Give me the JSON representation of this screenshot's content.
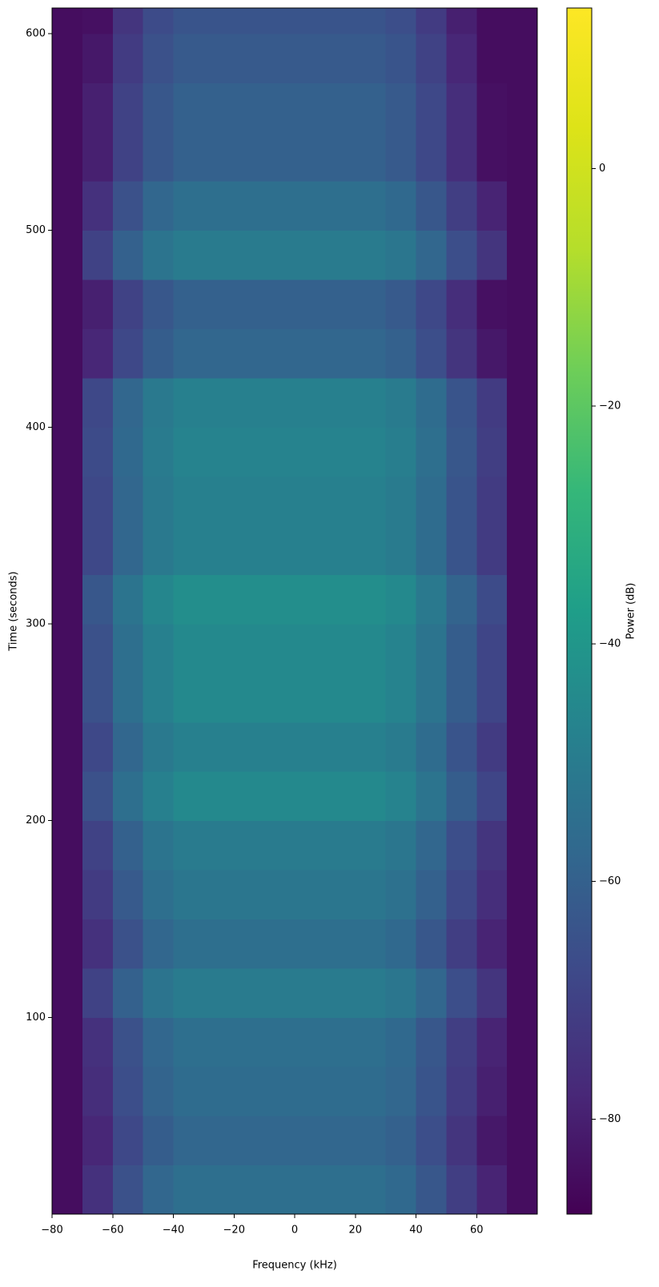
{
  "chart_data": {
    "type": "heatmap",
    "xlabel": "Frequency (kHz)",
    "ylabel": "Time (seconds)",
    "xlim": [
      -80,
      80
    ],
    "ylim": [
      0,
      613
    ],
    "xticks": [
      {
        "value": -80,
        "label": "−80"
      },
      {
        "value": -60,
        "label": "−60"
      },
      {
        "value": -40,
        "label": "−40"
      },
      {
        "value": -20,
        "label": "−20"
      },
      0,
      20,
      40,
      60
    ],
    "yticks": [
      100,
      200,
      300,
      400,
      500,
      600
    ],
    "colormap": "viridis",
    "xbins": [
      -80,
      -70,
      -60,
      -50,
      -40,
      -30,
      -20,
      -10,
      0,
      10,
      20,
      30,
      40,
      50,
      60,
      70,
      80
    ],
    "ybins": [
      0,
      25,
      50,
      75,
      100,
      125,
      150,
      175,
      200,
      225,
      250,
      275,
      300,
      325,
      350,
      375,
      400,
      425,
      450,
      475,
      500,
      525,
      550,
      575,
      600,
      613
    ],
    "values": [
      [
        -85,
        -75,
        -65,
        -58,
        -55,
        -55,
        -55,
        -55,
        -55,
        -55,
        -55,
        -57,
        -63,
        -71,
        -79,
        -85
      ],
      [
        -85,
        -78,
        -68,
        -61,
        -58,
        -58,
        -58,
        -58,
        -58,
        -58,
        -58,
        -60,
        -66,
        -74,
        -82,
        -85
      ],
      [
        -85,
        -76,
        -66,
        -59,
        -56,
        -56,
        -56,
        -56,
        -56,
        -56,
        -56,
        -58,
        -64,
        -72,
        -80,
        -85
      ],
      [
        -85,
        -75,
        -65,
        -58,
        -55,
        -55,
        -55,
        -55,
        -55,
        -55,
        -55,
        -57,
        -63,
        -71,
        -79,
        -85
      ],
      [
        -85,
        -70,
        -60,
        -53,
        -50,
        -50,
        -50,
        -50,
        -50,
        -50,
        -50,
        -52,
        -58,
        -66,
        -74,
        -85
      ],
      [
        -85,
        -75,
        -65,
        -58,
        -55,
        -55,
        -55,
        -55,
        -55,
        -55,
        -55,
        -57,
        -63,
        -71,
        -79,
        -85
      ],
      [
        -85,
        -72,
        -62,
        -55,
        -52,
        -52,
        -52,
        -52,
        -52,
        -52,
        -52,
        -54,
        -60,
        -68,
        -76,
        -85
      ],
      [
        -85,
        -70,
        -60,
        -53,
        -50,
        -50,
        -50,
        -50,
        -50,
        -50,
        -50,
        -52,
        -58,
        -66,
        -74,
        -85
      ],
      [
        -85,
        -65,
        -55,
        -48,
        -45,
        -45,
        -45,
        -45,
        -45,
        -45,
        -45,
        -47,
        -53,
        -61,
        -69,
        -85
      ],
      [
        -85,
        -68,
        -58,
        -51,
        -48,
        -48,
        -48,
        -48,
        -48,
        -48,
        -48,
        -50,
        -56,
        -64,
        -72,
        -85
      ],
      [
        -85,
        -65,
        -55,
        -48,
        -45,
        -45,
        -45,
        -45,
        -45,
        -45,
        -45,
        -47,
        -53,
        -61,
        -69,
        -85
      ],
      [
        -85,
        -65,
        -55,
        -48,
        -45,
        -45,
        -45,
        -45,
        -45,
        -45,
        -45,
        -47,
        -53,
        -61,
        -69,
        -85
      ],
      [
        -85,
        -63,
        -53,
        -46,
        -43,
        -43,
        -43,
        -43,
        -43,
        -43,
        -43,
        -45,
        -51,
        -59,
        -67,
        -85
      ],
      [
        -85,
        -68,
        -58,
        -51,
        -48,
        -48,
        -48,
        -48,
        -48,
        -48,
        -48,
        -50,
        -56,
        -64,
        -72,
        -85
      ],
      [
        -85,
        -68,
        -58,
        -51,
        -48,
        -48,
        -48,
        -48,
        -48,
        -48,
        -48,
        -50,
        -56,
        -64,
        -72,
        -85
      ],
      [
        -85,
        -67,
        -57,
        -50,
        -47,
        -47,
        -47,
        -47,
        -47,
        -47,
        -47,
        -49,
        -55,
        -63,
        -71,
        -85
      ],
      [
        -85,
        -68,
        -58,
        -51,
        -48,
        -48,
        -48,
        -48,
        -48,
        -48,
        -48,
        -50,
        -56,
        -64,
        -72,
        -85
      ],
      [
        -85,
        -78,
        -68,
        -61,
        -58,
        -58,
        -58,
        -58,
        -58,
        -58,
        -58,
        -60,
        -66,
        -74,
        -82,
        -85
      ],
      [
        -85,
        -80,
        -70,
        -63,
        -60,
        -60,
        -60,
        -60,
        -60,
        -60,
        -60,
        -62,
        -68,
        -76,
        -84,
        -85
      ],
      [
        -85,
        -70,
        -60,
        -53,
        -50,
        -50,
        -50,
        -50,
        -50,
        -50,
        -50,
        -52,
        -58,
        -66,
        -74,
        -85
      ],
      [
        -85,
        -75,
        -65,
        -58,
        -55,
        -55,
        -55,
        -55,
        -55,
        -55,
        -55,
        -57,
        -63,
        -71,
        -79,
        -85
      ],
      [
        -85,
        -80,
        -70,
        -63,
        -60,
        -60,
        -60,
        -60,
        -60,
        -60,
        -60,
        -62,
        -68,
        -76,
        -84,
        -85
      ],
      [
        -85,
        -80,
        -70,
        -63,
        -60,
        -60,
        -60,
        -60,
        -60,
        -60,
        -60,
        -62,
        -68,
        -76,
        -84,
        -85
      ],
      [
        -85,
        -82,
        -72,
        -65,
        -62,
        -62,
        -62,
        -62,
        -62,
        -62,
        -62,
        -64,
        -70,
        -78,
        -85,
        -85
      ],
      [
        -85,
        -84,
        -74,
        -67,
        -64,
        -64,
        -64,
        -64,
        -64,
        -64,
        -64,
        -66,
        -72,
        -80,
        -85,
        -85
      ]
    ],
    "colorbar": {
      "label": "Power (dB)",
      "lim": [
        -88,
        13.5
      ],
      "ticks": [
        {
          "value": -80,
          "label": "−80"
        },
        {
          "value": -60,
          "label": "−60"
        },
        {
          "value": -40,
          "label": "−40"
        },
        {
          "value": -20,
          "label": "−20"
        },
        0
      ]
    }
  }
}
